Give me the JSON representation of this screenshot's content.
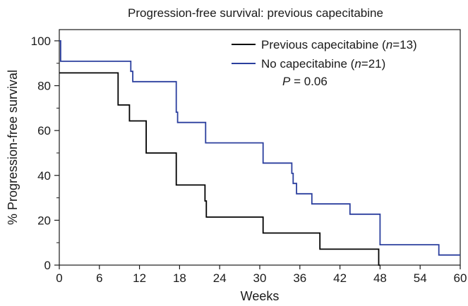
{
  "chart_data": {
    "type": "line",
    "step": true,
    "title": "Progression-free survival: previous capecitabine",
    "xlabel": "Weeks",
    "ylabel": "% Progression-free survival",
    "xlim": [
      0,
      60
    ],
    "ylim": [
      0,
      105
    ],
    "xticks": [
      0,
      6,
      12,
      18,
      24,
      30,
      36,
      42,
      48,
      54,
      60
    ],
    "yticks": [
      0,
      20,
      40,
      60,
      80,
      100
    ],
    "yminor": [
      10,
      30,
      50,
      70,
      90
    ],
    "grid": false,
    "legend_position": "top-right",
    "annotation": {
      "prefix": "P",
      "text": " = 0.06"
    },
    "series": [
      {
        "legend": {
          "name": "Previous capecitabine (",
          "n_label": "n",
          "count": "=13)"
        },
        "color": "#000000",
        "x": [
          0,
          8.8,
          10.5,
          13,
          17.5,
          21.8,
          22,
          30.5,
          39,
          47.8,
          48
        ],
        "y": [
          85.7,
          71.4,
          64.3,
          50,
          35.7,
          28.6,
          21.4,
          14.3,
          7.1,
          0,
          0
        ]
      },
      {
        "legend": {
          "name": "No capecitabine (",
          "n_label": "n",
          "count": "=21)"
        },
        "color": "#2b3f9e",
        "x": [
          0,
          0.2,
          10.7,
          11,
          17.5,
          17.7,
          21.9,
          30.5,
          34.8,
          35,
          35.5,
          37.8,
          43.5,
          48,
          56.8,
          60
        ],
        "y": [
          100,
          90.9,
          86.4,
          81.8,
          68.2,
          63.6,
          54.5,
          45.5,
          40.9,
          36.4,
          31.8,
          27.3,
          22.7,
          9.1,
          4.5,
          4.5
        ]
      }
    ]
  }
}
